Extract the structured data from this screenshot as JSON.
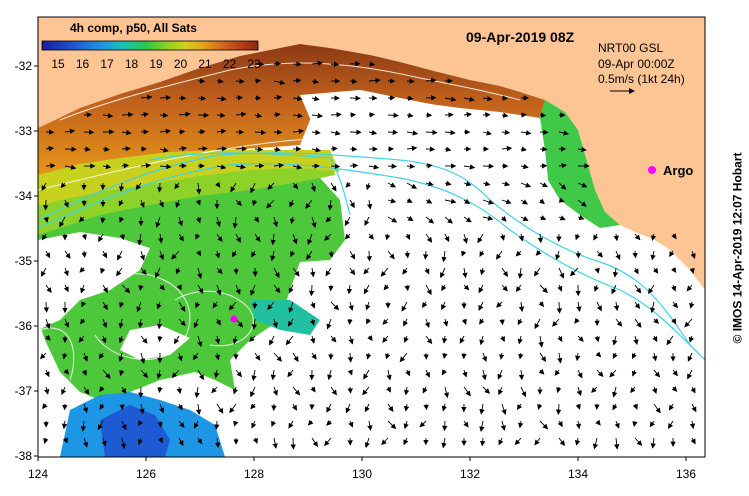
{
  "colorbar": {
    "title": "4h comp, p50, All Sats",
    "ticks": [
      "15",
      "16",
      "17",
      "18",
      "19",
      "20",
      "21",
      "22",
      "23"
    ],
    "colors": [
      "#1a1aa0",
      "#1e5ad2",
      "#1e96e6",
      "#19c3b4",
      "#28c850",
      "#8cd21e",
      "#d2d21e",
      "#e6a019",
      "#d2641e",
      "#b43c14",
      "#8c2814"
    ]
  },
  "header": {
    "timestamp": "09-Apr-2019 08Z"
  },
  "legend": {
    "line1": "NRT00 GSL",
    "line2": "09-Apr 00:00Z",
    "line3": "0.5m/s (1kt 24h)"
  },
  "markers": {
    "argo_label": "Argo",
    "argo_color": "#ff00ff"
  },
  "axes": {
    "x_ticks": [
      "124",
      "126",
      "128",
      "130",
      "132",
      "134",
      "136"
    ],
    "y_ticks": [
      "-32",
      "-33",
      "-34",
      "-35",
      "-36",
      "-37",
      "-38"
    ]
  },
  "credit": "© IMOS 14-Apr-2019 12:07 Hobart",
  "colors": {
    "land": "#fdc594",
    "ocean": "#ffffff",
    "contour": "#ffffff",
    "bathymetry": "#3fd3e8"
  }
}
